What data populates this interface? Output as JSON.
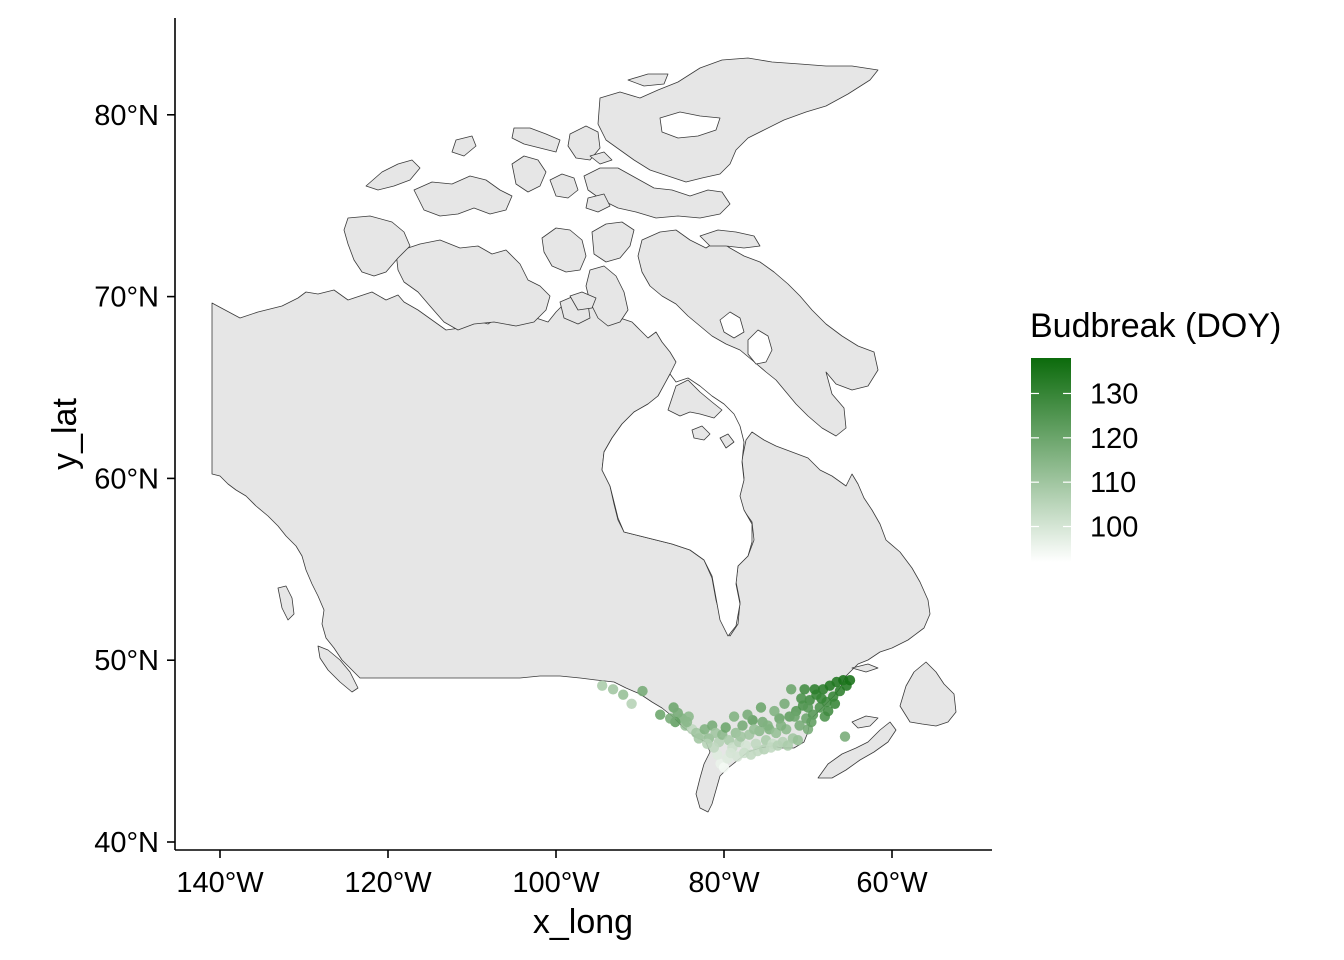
{
  "chart_data": {
    "type": "scatter",
    "subtype": "map-points",
    "region": "Canada",
    "xlabel": "x_long",
    "ylabel": "y_lat",
    "x_ticks": [
      {
        "value": -140,
        "label": "140°W"
      },
      {
        "value": -120,
        "label": "120°W"
      },
      {
        "value": -100,
        "label": "100°W"
      },
      {
        "value": -80,
        "label": "80°W"
      },
      {
        "value": -60,
        "label": "60°W"
      }
    ],
    "y_ticks": [
      {
        "value": 40,
        "label": "40°N"
      },
      {
        "value": 50,
        "label": "50°N"
      },
      {
        "value": 60,
        "label": "60°N"
      },
      {
        "value": 70,
        "label": "70°N"
      },
      {
        "value": 80,
        "label": "80°N"
      }
    ],
    "xlim": [
      -146,
      -48
    ],
    "ylim": [
      39.7,
      85.3
    ],
    "legend": {
      "title": "Budbreak (DOY)",
      "position": "right",
      "color_low": "#ffffff",
      "color_high": "#0c6b0c",
      "range": [
        92,
        138
      ],
      "breaks": [
        100,
        110,
        120,
        130
      ]
    },
    "points": [
      [
        -94.5,
        48.6,
        108
      ],
      [
        -93.2,
        48.4,
        110
      ],
      [
        -92.0,
        48.1,
        112
      ],
      [
        -91.0,
        47.6,
        106
      ],
      [
        -89.7,
        48.3,
        118
      ],
      [
        -86.0,
        47.4,
        120
      ],
      [
        -85.5,
        47.1,
        118
      ],
      [
        -85.0,
        46.8,
        116
      ],
      [
        -84.6,
        46.4,
        112
      ],
      [
        -85.8,
        46.6,
        122
      ],
      [
        -84.2,
        46.9,
        114
      ],
      [
        -83.8,
        46.2,
        104
      ],
      [
        -83.3,
        46.0,
        110
      ],
      [
        -82.8,
        45.9,
        108
      ],
      [
        -82.3,
        46.2,
        116
      ],
      [
        -81.8,
        45.7,
        112
      ],
      [
        -81.4,
        46.4,
        118
      ],
      [
        -81.0,
        46.0,
        110
      ],
      [
        -80.6,
        45.5,
        106
      ],
      [
        -80.2,
        45.9,
        114
      ],
      [
        -79.8,
        46.3,
        120
      ],
      [
        -79.4,
        45.6,
        108
      ],
      [
        -79.0,
        45.2,
        102
      ],
      [
        -78.6,
        46.0,
        112
      ],
      [
        -78.2,
        45.5,
        106
      ],
      [
        -77.8,
        46.4,
        118
      ],
      [
        -77.4,
        45.3,
        100
      ],
      [
        -77.0,
        45.9,
        110
      ],
      [
        -76.6,
        46.7,
        122
      ],
      [
        -76.2,
        45.4,
        104
      ],
      [
        -75.8,
        46.1,
        114
      ],
      [
        -75.4,
        46.6,
        118
      ],
      [
        -75.0,
        45.6,
        108
      ],
      [
        -74.6,
        46.2,
        116
      ],
      [
        -74.2,
        45.4,
        102
      ],
      [
        -73.8,
        46.0,
        112
      ],
      [
        -73.4,
        46.8,
        120
      ],
      [
        -73.0,
        45.5,
        106
      ],
      [
        -72.6,
        46.2,
        114
      ],
      [
        -72.2,
        46.9,
        122
      ],
      [
        -71.8,
        45.7,
        110
      ],
      [
        -71.4,
        47.2,
        124
      ],
      [
        -71.0,
        46.4,
        118
      ],
      [
        -70.6,
        47.5,
        126
      ],
      [
        -70.2,
        46.8,
        120
      ],
      [
        -69.8,
        47.8,
        128
      ],
      [
        -69.4,
        47.0,
        124
      ],
      [
        -69.0,
        48.1,
        130
      ],
      [
        -68.6,
        47.4,
        126
      ],
      [
        -68.2,
        48.4,
        132
      ],
      [
        -67.8,
        47.7,
        128
      ],
      [
        -67.4,
        48.6,
        134
      ],
      [
        -67.0,
        48.0,
        130
      ],
      [
        -66.6,
        48.8,
        134
      ],
      [
        -66.2,
        48.3,
        132
      ],
      [
        -65.8,
        48.9,
        136
      ],
      [
        -65.4,
        48.6,
        134
      ],
      [
        -65.0,
        48.9,
        136
      ],
      [
        -65.6,
        45.8,
        118
      ],
      [
        -68.4,
        47.9,
        130
      ],
      [
        -69.2,
        48.4,
        132
      ],
      [
        -68.0,
        46.9,
        126
      ],
      [
        -70.8,
        47.9,
        126
      ],
      [
        -70.4,
        48.4,
        128
      ],
      [
        -72.0,
        48.4,
        120
      ],
      [
        -72.8,
        47.6,
        118
      ],
      [
        -74.0,
        47.2,
        116
      ],
      [
        -75.6,
        47.4,
        120
      ],
      [
        -77.2,
        47.0,
        118
      ],
      [
        -78.8,
        46.9,
        116
      ],
      [
        -80.4,
        44.3,
        96
      ],
      [
        -80.0,
        44.1,
        94
      ],
      [
        -79.6,
        44.6,
        98
      ],
      [
        -80.8,
        44.8,
        98
      ],
      [
        -79.2,
        44.9,
        100
      ],
      [
        -78.4,
        44.7,
        100
      ],
      [
        -77.6,
        44.9,
        102
      ],
      [
        -76.8,
        44.8,
        104
      ],
      [
        -76.0,
        45.0,
        104
      ],
      [
        -75.2,
        45.1,
        106
      ],
      [
        -74.4,
        45.2,
        104
      ],
      [
        -73.6,
        45.3,
        106
      ],
      [
        -72.4,
        45.3,
        108
      ],
      [
        -71.2,
        45.6,
        112
      ],
      [
        -70.0,
        46.2,
        118
      ],
      [
        -81.2,
        45.2,
        104
      ],
      [
        -82.0,
        45.4,
        106
      ],
      [
        -83.0,
        45.7,
        110
      ],
      [
        -84.4,
        46.6,
        114
      ],
      [
        -86.4,
        46.8,
        118
      ],
      [
        -87.6,
        47.0,
        120
      ],
      [
        -78.0,
        45.8,
        110
      ],
      [
        -76.4,
        46.2,
        112
      ],
      [
        -74.8,
        46.4,
        116
      ],
      [
        -73.2,
        46.4,
        116
      ],
      [
        -71.6,
        46.9,
        120
      ],
      [
        -70.0,
        47.4,
        124
      ],
      [
        -69.6,
        46.6,
        122
      ],
      [
        -67.6,
        47.2,
        128
      ],
      [
        -66.8,
        47.6,
        130
      ]
    ]
  }
}
